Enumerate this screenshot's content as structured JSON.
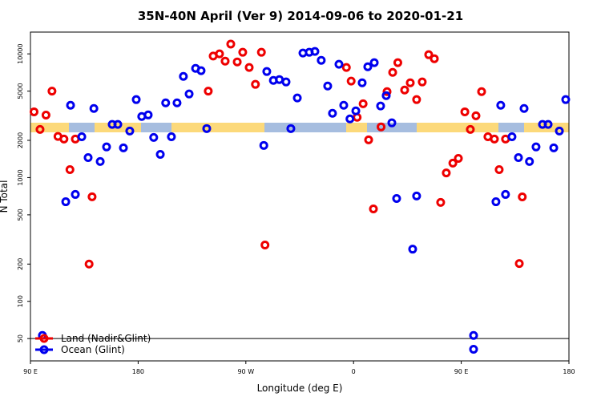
{
  "chart_data": {
    "type": "scatter",
    "title": "35N-40N April (Ver 9)   2014-09-06 to 2020-01-21",
    "xlabel": "Longitude (deg E)",
    "ylabel": "N Total",
    "xlim": [
      90,
      540
    ],
    "xticks": [
      {
        "value": 90,
        "label": "90 E"
      },
      {
        "value": 180,
        "label": "180"
      },
      {
        "value": 270,
        "label": "90 W"
      },
      {
        "value": 360,
        "label": "0"
      },
      {
        "value": 450,
        "label": "90 E"
      },
      {
        "value": 540,
        "label": "180"
      }
    ],
    "ylim": [
      33,
      15000
    ],
    "ylog": true,
    "yticks": [
      50,
      100,
      200,
      500,
      1000,
      2000,
      5000,
      10000
    ],
    "reference_line": 50,
    "legend": "bottom-left",
    "series": [
      {
        "name": "Land (Nadir&Glint)",
        "color": "#ee0000",
        "x": [
          93,
          98,
          103,
          108,
          113,
          118,
          123,
          127.5,
          139,
          141.5,
          238.6,
          242.7,
          248,
          252.7,
          257.4,
          262.8,
          267.4,
          272.8,
          278,
          283,
          286,
          354,
          358,
          363,
          368,
          372.6,
          376.6,
          383,
          388,
          392.7,
          397,
          402.7,
          407.4,
          412.7,
          417.4,
          422.8,
          427.5,
          432.8,
          437.5,
          443,
          447.6,
          453,
          457.6,
          462.3,
          467,
          472.3,
          477.7,
          481.7,
          487,
          498.5,
          501
        ],
        "values": [
          3400,
          2450,
          3200,
          5000,
          2150,
          2050,
          1160,
          2050,
          200,
          700,
          5000,
          9600,
          10000,
          8740,
          12000,
          8610,
          10300,
          7760,
          5670,
          10300,
          285,
          7760,
          6020,
          3070,
          3950,
          2020,
          558,
          2570,
          4950,
          7090,
          8490,
          5100,
          5840,
          4270,
          5930,
          9850,
          9140,
          630,
          1090,
          1310,
          1430,
          3400,
          2450,
          3160,
          4950,
          2140,
          2050,
          1160,
          2050,
          202,
          698
        ]
      },
      {
        "name": "Ocean (Glint)",
        "color": "#0000ee",
        "x": [
          100,
          119.5,
          123.5,
          127.5,
          132.9,
          138.2,
          143,
          148.3,
          153.6,
          158.3,
          163,
          167.7,
          173,
          178.4,
          183,
          188.4,
          193,
          198.5,
          203,
          207.8,
          212.5,
          217.8,
          222.6,
          228,
          232.6,
          237.3,
          285,
          287.5,
          293,
          298,
          303.6,
          307.6,
          313,
          317.7,
          323,
          327.7,
          333,
          338.4,
          342.4,
          347.8,
          351.8,
          357,
          361.9,
          367.2,
          371.9,
          377.3,
          382.6,
          387.3,
          392,
          396,
          409.4,
          412.7,
          460.3,
          460.3,
          479,
          483,
          487,
          492.4,
          497.8,
          502.5,
          507,
          512.5,
          517.9,
          522.6,
          527.3,
          532,
          537.3
        ],
        "values": [
          53,
          638,
          3840,
          731,
          2140,
          1450,
          3620,
          1350,
          1770,
          2690,
          2690,
          1740,
          2380,
          4270,
          3120,
          3210,
          2110,
          1540,
          4020,
          2140,
          4020,
          6580,
          4740,
          7640,
          7310,
          2490,
          1820,
          7200,
          6100,
          6200,
          5930,
          2490,
          4400,
          10150,
          10300,
          10460,
          8870,
          5500,
          3310,
          8240,
          3840,
          2980,
          3460,
          5840,
          7870,
          8490,
          3790,
          4600,
          2770,
          678,
          264,
          710,
          53,
          41,
          638,
          3840,
          731,
          2140,
          1450,
          3620,
          1350,
          1770,
          2690,
          2690,
          1740,
          2380,
          4270
        ]
      }
    ]
  }
}
